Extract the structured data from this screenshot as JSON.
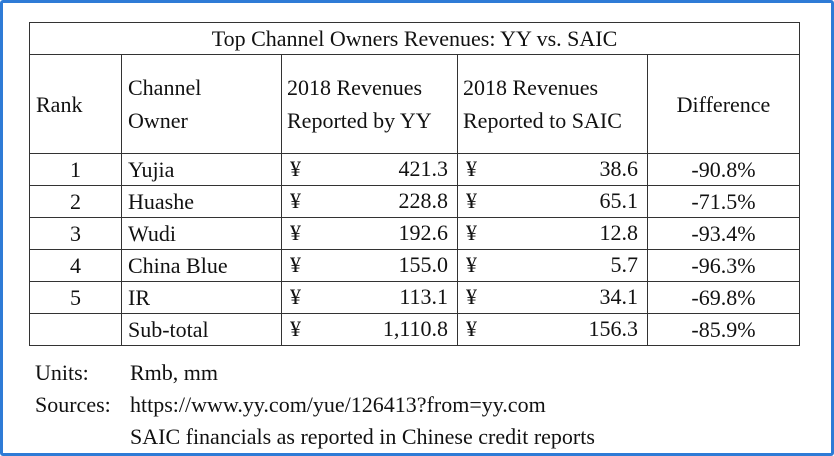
{
  "table": {
    "title": "Top Channel Owners Revenues: YY vs. SAIC",
    "headers": {
      "rank": "Rank",
      "owner_line1": "Channel",
      "owner_line2": "Owner",
      "yy_line1": "2018 Revenues",
      "yy_line2": "Reported by YY",
      "saic_line1": "2018 Revenues",
      "saic_line2": "Reported to SAIC",
      "difference": "Difference"
    },
    "currency_symbol": "¥",
    "rows": [
      {
        "rank": "1",
        "owner": "Yujia",
        "yy": "421.3",
        "saic": "38.6",
        "difference": "-90.8%"
      },
      {
        "rank": "2",
        "owner": "Huashe",
        "yy": "228.8",
        "saic": "65.1",
        "difference": "-71.5%"
      },
      {
        "rank": "3",
        "owner": "Wudi",
        "yy": "192.6",
        "saic": "12.8",
        "difference": "-93.4%"
      },
      {
        "rank": "4",
        "owner": "China Blue",
        "yy": "155.0",
        "saic": "5.7",
        "difference": "-96.3%"
      },
      {
        "rank": "5",
        "owner": "IR",
        "yy": "113.1",
        "saic": "34.1",
        "difference": "-69.8%"
      }
    ],
    "subtotal": {
      "rank": "",
      "owner": "Sub-total",
      "yy": "1,110.8",
      "saic": "156.3",
      "difference": "-85.9%"
    }
  },
  "notes": {
    "units_label": "Units:",
    "units_value": "Rmb, mm",
    "sources_label": "Sources:",
    "source_1": "https://www.yy.com/yue/126413?from=yy.com",
    "source_2": "SAIC financials as reported in Chinese credit reports"
  },
  "colors": {
    "frame_border": "#2e7bd6",
    "text": "#111111",
    "grid": "#333333"
  }
}
